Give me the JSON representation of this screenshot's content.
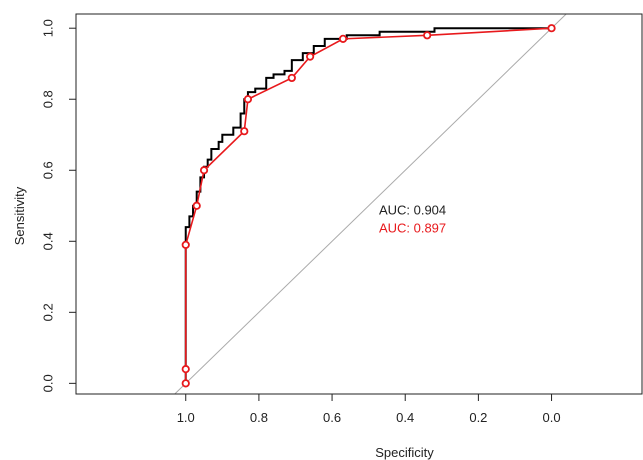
{
  "chart_data": {
    "type": "line",
    "title": "",
    "xlabel": "Specificity",
    "ylabel": "Sensitivity",
    "xlim": [
      1.3,
      -0.25
    ],
    "ylim": [
      -0.03,
      1.04
    ],
    "x_reversed": true,
    "x_ticks": [
      1.0,
      0.8,
      0.6,
      0.4,
      0.2,
      0.0
    ],
    "x_tick_labels": [
      "1.0",
      "0.8",
      "0.6",
      "0.4",
      "0.2",
      "0.0"
    ],
    "y_ticks": [
      0.0,
      0.2,
      0.4,
      0.6,
      0.8,
      1.0
    ],
    "y_tick_labels": [
      "0.0",
      "0.2",
      "0.4",
      "0.6",
      "0.8",
      "1.0"
    ],
    "grid": false,
    "legend": "none",
    "diagonal_reference": true,
    "series": [
      {
        "color": "#000000",
        "step": true,
        "specificity": [
          1.0,
          1.0,
          1.0,
          0.99,
          0.99,
          0.98,
          0.98,
          0.97,
          0.97,
          0.96,
          0.96,
          0.95,
          0.95,
          0.94,
          0.94,
          0.93,
          0.93,
          0.91,
          0.91,
          0.9,
          0.9,
          0.87,
          0.87,
          0.85,
          0.85,
          0.84,
          0.84,
          0.83,
          0.83,
          0.81,
          0.81,
          0.78,
          0.78,
          0.76,
          0.76,
          0.73,
          0.73,
          0.71,
          0.71,
          0.68,
          0.68,
          0.65,
          0.65,
          0.62,
          0.62,
          0.56,
          0.56,
          0.47,
          0.47,
          0.32,
          0.32,
          0.0
        ],
        "sensitivity": [
          0.0,
          0.4,
          0.44,
          0.44,
          0.47,
          0.47,
          0.5,
          0.5,
          0.54,
          0.54,
          0.58,
          0.58,
          0.61,
          0.61,
          0.63,
          0.63,
          0.66,
          0.66,
          0.68,
          0.68,
          0.7,
          0.7,
          0.72,
          0.72,
          0.76,
          0.76,
          0.8,
          0.8,
          0.82,
          0.82,
          0.83,
          0.83,
          0.86,
          0.86,
          0.87,
          0.87,
          0.88,
          0.88,
          0.91,
          0.91,
          0.93,
          0.93,
          0.95,
          0.95,
          0.97,
          0.97,
          0.98,
          0.98,
          0.99,
          0.99,
          1.0,
          1.0
        ]
      },
      {
        "color": "#e8191c",
        "step": false,
        "markers": true,
        "specificity": [
          1.0,
          1.0,
          1.0,
          0.97,
          0.95,
          0.84,
          0.83,
          0.71,
          0.66,
          0.57,
          0.34,
          0.0
        ],
        "sensitivity": [
          0.0,
          0.04,
          0.39,
          0.5,
          0.6,
          0.71,
          0.8,
          0.86,
          0.92,
          0.97,
          0.98,
          1.0
        ]
      }
    ],
    "annotations": [
      {
        "text": "AUC: 0.904",
        "color": "#222222"
      },
      {
        "text": "AUC: 0.897",
        "color": "#e8191c"
      }
    ]
  }
}
